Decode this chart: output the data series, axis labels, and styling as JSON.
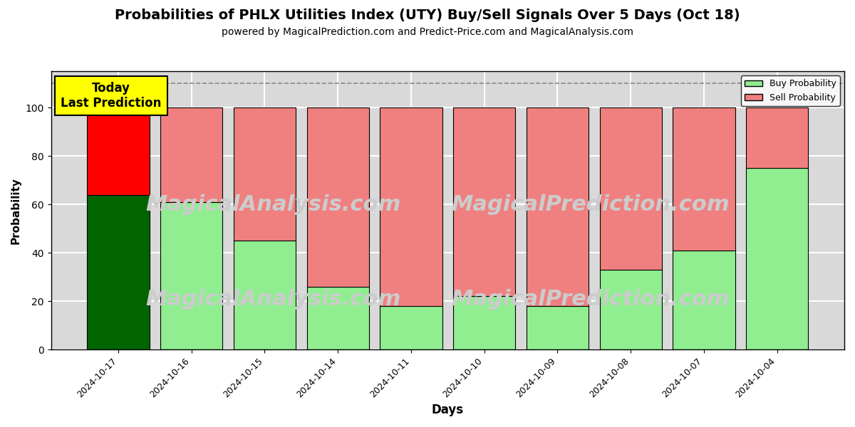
{
  "title": "Probabilities of PHLX Utilities Index (UTY) Buy/Sell Signals Over 5 Days (Oct 18)",
  "subtitle": "powered by MagicalPrediction.com and Predict-Price.com and MagicalAnalysis.com",
  "xlabel": "Days",
  "ylabel": "Probability",
  "categories": [
    "2024-10-17",
    "2024-10-16",
    "2024-10-15",
    "2024-10-14",
    "2024-10-11",
    "2024-10-10",
    "2024-10-09",
    "2024-10-08",
    "2024-10-07",
    "2024-10-04"
  ],
  "buy_values": [
    64,
    61,
    45,
    26,
    18,
    22,
    18,
    33,
    41,
    75
  ],
  "sell_values": [
    36,
    39,
    55,
    74,
    82,
    78,
    82,
    67,
    59,
    25
  ],
  "first_bar_buy_color": "#006400",
  "first_bar_sell_color": "#ff0000",
  "other_buy_color": "#90EE90",
  "other_sell_color": "#F08080",
  "bar_edge_color": "black",
  "bar_edge_width": 0.8,
  "ylim": [
    0,
    115
  ],
  "yticks": [
    0,
    20,
    40,
    60,
    80,
    100
  ],
  "dashed_line_y": 110,
  "dashed_line_color": "#888888",
  "dashed_line_style": "--",
  "grid_color": "white",
  "grid_linewidth": 1.5,
  "background_color": "#d9d9d9",
  "annotation_text": "Today\nLast Prediction",
  "annotation_bg_color": "yellow",
  "annotation_fontsize": 12,
  "watermark1_text": "MagicalAnalysis.com",
  "watermark2_text": "MagicalPrediction.com",
  "watermark_color": "#cccccc",
  "watermark_fontsize": 22,
  "title_fontsize": 14,
  "subtitle_fontsize": 10,
  "xlabel_fontsize": 12,
  "ylabel_fontsize": 11,
  "legend_buy_color": "#90EE90",
  "legend_sell_color": "#F08080",
  "figsize": [
    12.0,
    6.0
  ],
  "dpi": 100
}
